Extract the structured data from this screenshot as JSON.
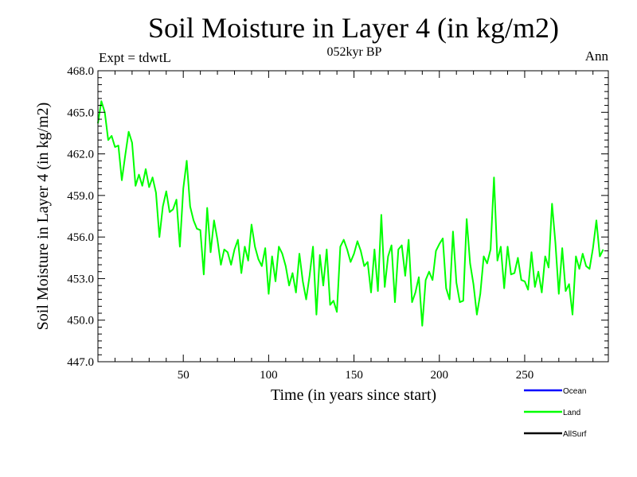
{
  "chart_data": {
    "type": "line",
    "title": "Soil Moisture in Layer 4 (in kg/m2)",
    "subtitle": "052kyr BP",
    "left_note": "Expt = tdwtL",
    "right_note": "Ann",
    "xlabel": "Time (in years since start)",
    "ylabel": "Soil Moisture in Layer 4 (in kg/m2)",
    "xlim": [
      0,
      299
    ],
    "ylim": [
      447.0,
      468.0
    ],
    "x_ticks": [
      50,
      100,
      150,
      200,
      250
    ],
    "x_tick_labels": [
      "50",
      "100",
      "150",
      "200",
      "250"
    ],
    "y_ticks": [
      447.0,
      450.0,
      453.0,
      456.0,
      459.0,
      462.0,
      465.0,
      468.0
    ],
    "y_tick_labels": [
      "447.0",
      "450.0",
      "453.0",
      "456.0",
      "459.0",
      "462.0",
      "465.0",
      "468.0"
    ],
    "legend_position": "bottom-right",
    "legend": [
      {
        "name": "Ocean",
        "color": "#0000ff"
      },
      {
        "name": "Land",
        "color": "#00ff00"
      },
      {
        "name": "AllSurf",
        "color": "#000000"
      }
    ],
    "series": [
      {
        "name": "Land",
        "color": "#00ff00",
        "x_start": 0,
        "x_step": 2,
        "values": [
          464.2,
          465.8,
          465.0,
          463.0,
          463.3,
          462.5,
          462.6,
          460.1,
          461.9,
          463.6,
          462.8,
          459.7,
          460.5,
          459.7,
          460.9,
          459.6,
          460.3,
          459.2,
          456.0,
          458.2,
          459.3,
          457.8,
          458.0,
          458.7,
          455.3,
          459.5,
          461.5,
          458.2,
          457.2,
          456.6,
          456.5,
          453.3,
          458.1,
          454.9,
          457.2,
          455.8,
          454.0,
          455.1,
          454.9,
          454.0,
          455.1,
          455.8,
          453.4,
          455.3,
          454.3,
          456.9,
          455.3,
          454.4,
          453.9,
          455.2,
          451.9,
          454.6,
          452.8,
          455.3,
          454.8,
          453.9,
          452.5,
          453.4,
          452.0,
          454.8,
          452.8,
          451.5,
          453.2,
          455.3,
          450.4,
          454.7,
          452.5,
          455.1,
          451.1,
          451.4,
          450.6,
          455.3,
          455.8,
          455.1,
          454.2,
          454.8,
          455.7,
          455.0,
          453.9,
          454.2,
          452.0,
          455.1,
          452.1,
          457.6,
          452.4,
          454.6,
          455.4,
          451.3,
          455.1,
          455.4,
          453.2,
          455.8,
          451.3,
          452.0,
          453.1,
          449.6,
          452.9,
          453.5,
          452.9,
          455.0,
          455.5,
          455.9,
          452.3,
          451.5,
          456.4,
          452.7,
          451.3,
          451.4,
          457.3,
          454.1,
          452.6,
          450.4,
          451.9,
          454.6,
          454.1,
          455.1,
          460.3,
          454.3,
          455.3,
          452.3,
          455.3,
          453.3,
          453.4,
          454.5,
          452.9,
          452.8,
          452.2,
          454.9,
          452.4,
          453.5,
          452.0,
          454.6,
          453.8,
          458.4,
          455.6,
          451.9,
          455.2,
          452.1,
          452.6,
          450.4,
          454.6,
          453.7,
          454.8,
          453.9,
          453.7,
          455.2,
          457.2,
          454.6,
          455.1
        ]
      }
    ]
  }
}
